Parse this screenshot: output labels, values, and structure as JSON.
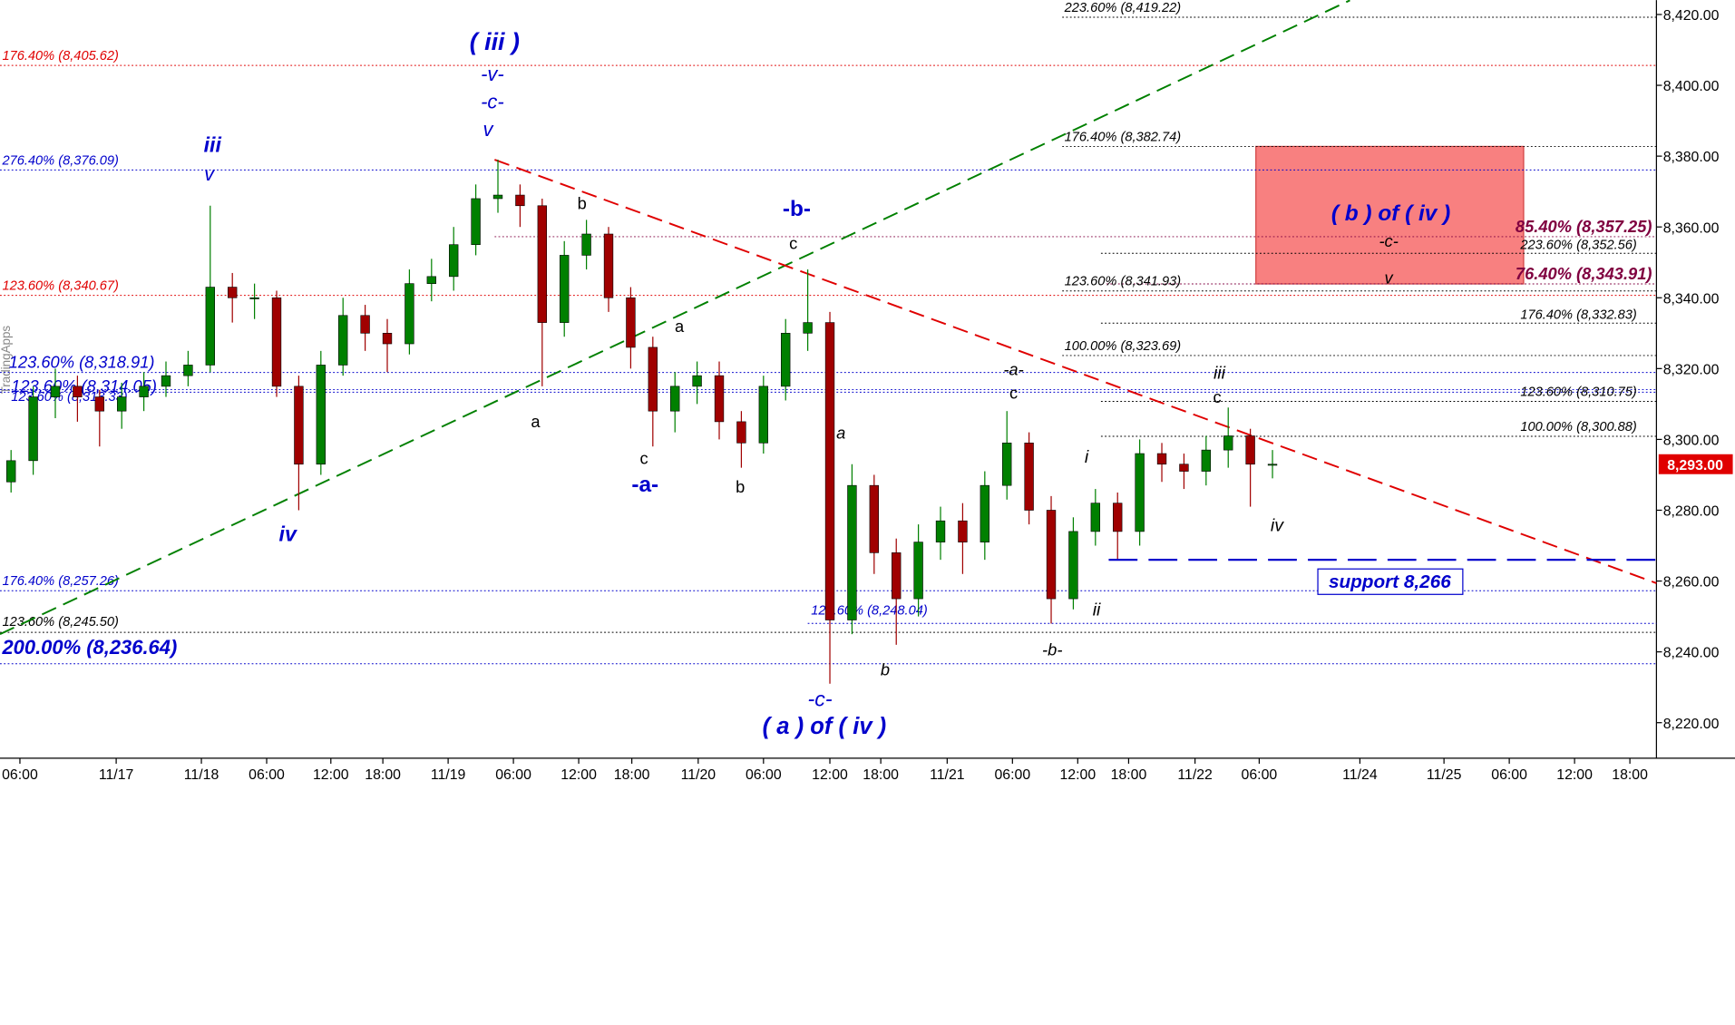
{
  "chart_data": {
    "type": "candlestick",
    "watermark": "TradingApps",
    "up_color": "#008000",
    "down_color": "#a00000",
    "xlim": [
      0,
      74.85
    ],
    "ylim": [
      8210.6,
      8424.06
    ],
    "yticks": [
      {
        "value": 8220,
        "label": "8,220.00"
      },
      {
        "value": 8240,
        "label": "8,240.00"
      },
      {
        "value": 8260,
        "label": "8,260.00"
      },
      {
        "value": 8280,
        "label": "8,280.00"
      },
      {
        "value": 8300,
        "label": "8,300.00"
      },
      {
        "value": 8320,
        "label": "8,320.00"
      },
      {
        "value": 8340,
        "label": "8,340.00"
      },
      {
        "value": 8360,
        "label": "8,360.00"
      },
      {
        "value": 8380,
        "label": "8,380.00"
      },
      {
        "value": 8400,
        "label": "8,400.00"
      },
      {
        "value": 8420,
        "label": "8,420.00"
      }
    ],
    "xticks": [
      {
        "value": 0.9,
        "label": "06:00"
      },
      {
        "value": 5.25,
        "label": "11/17"
      },
      {
        "value": 9.1,
        "label": "11/18"
      },
      {
        "value": 12.05,
        "label": "06:00"
      },
      {
        "value": 14.95,
        "label": "12:00"
      },
      {
        "value": 17.3,
        "label": "18:00"
      },
      {
        "value": 20.25,
        "label": "11/19"
      },
      {
        "value": 23.2,
        "label": "06:00"
      },
      {
        "value": 26.15,
        "label": "12:00"
      },
      {
        "value": 28.55,
        "label": "18:00"
      },
      {
        "value": 31.55,
        "label": "11/20"
      },
      {
        "value": 34.5,
        "label": "06:00"
      },
      {
        "value": 37.5,
        "label": "12:00"
      },
      {
        "value": 39.8,
        "label": "18:00"
      },
      {
        "value": 42.8,
        "label": "11/21"
      },
      {
        "value": 45.75,
        "label": "06:00"
      },
      {
        "value": 48.7,
        "label": "12:00"
      },
      {
        "value": 51,
        "label": "18:00"
      },
      {
        "value": 54,
        "label": "11/22"
      },
      {
        "value": 56.9,
        "label": "06:00"
      },
      {
        "value": 61.45,
        "label": "11/24"
      },
      {
        "value": 65.25,
        "label": "11/25"
      },
      {
        "value": 68.2,
        "label": "06:00"
      },
      {
        "value": 71.15,
        "label": "12:00"
      },
      {
        "value": 73.65,
        "label": "18:00"
      }
    ],
    "x": [
      0.5,
      1.5,
      2.5,
      3.5,
      4.5,
      5.5,
      6.5,
      7.5,
      8.5,
      9.5,
      10.5,
      11.5,
      12.5,
      13.5,
      14.5,
      15.5,
      16.5,
      17.5,
      18.5,
      19.5,
      20.5,
      21.5,
      22.5,
      23.5,
      24.5,
      25.5,
      26.5,
      27.5,
      28.5,
      29.5,
      30.5,
      31.5,
      32.5,
      33.5,
      34.5,
      35.5,
      36.5,
      37.5,
      38.5,
      39.5,
      40.5,
      41.5,
      42.5,
      43.5,
      44.5,
      45.5,
      46.5,
      47.5,
      48.5,
      49.5,
      50.5,
      51.5,
      52.5,
      53.5,
      54.5,
      55.5,
      56.5,
      57.5
    ],
    "open": [
      8288,
      8294,
      8312,
      8315,
      8312,
      8308,
      8312,
      8315,
      8318,
      8321,
      8343,
      8340,
      8340,
      8315,
      8293,
      8321,
      8335,
      8330,
      8327,
      8344,
      8346,
      8355,
      8368,
      8369,
      8366,
      8333,
      8352,
      8358,
      8340,
      8326,
      8308,
      8315,
      8318,
      8305,
      8299,
      8315,
      8330,
      8333,
      8249,
      8287,
      8268,
      8255,
      8271,
      8277,
      8271,
      8287,
      8299,
      8280,
      8255,
      8274,
      8282,
      8274,
      8296,
      8293,
      8291,
      8297,
      8301,
      8293
    ],
    "high": [
      8297,
      8315,
      8320,
      8318,
      8314,
      8316,
      8319,
      8322,
      8325,
      8366,
      8347,
      8344,
      8342,
      8318,
      8325,
      8340,
      8338,
      8334,
      8348,
      8351,
      8360,
      8372,
      8379,
      8372,
      8368,
      8356,
      8362,
      8360,
      8343,
      8329,
      8319,
      8322,
      8322,
      8308,
      8318,
      8334,
      8348,
      8336,
      8293,
      8290,
      8272,
      8276,
      8281,
      8282,
      8291,
      8308,
      8302,
      8284,
      8278,
      8286,
      8285,
      8300,
      8299,
      8296,
      8301,
      8309,
      8303,
      8297
    ],
    "low": [
      8285,
      8290,
      8306,
      8305,
      8298,
      8303,
      8308,
      8312,
      8315,
      8319,
      8333,
      8334,
      8312,
      8280,
      8290,
      8318,
      8325,
      8319,
      8324,
      8339,
      8342,
      8352,
      8364,
      8360,
      8315,
      8329,
      8348,
      8336,
      8320,
      8298,
      8302,
      8310,
      8300,
      8292,
      8296,
      8311,
      8325,
      8231,
      8245,
      8262,
      8242,
      8250,
      8266,
      8262,
      8266,
      8283,
      8276,
      8248,
      8252,
      8270,
      8266,
      8270,
      8288,
      8286,
      8287,
      8292,
      8281,
      8289
    ],
    "close": [
      8294,
      8312,
      8315,
      8312,
      8308,
      8312,
      8315,
      8318,
      8321,
      8343,
      8340,
      8340,
      8315,
      8293,
      8321,
      8335,
      8330,
      8327,
      8344,
      8346,
      8355,
      8368,
      8369,
      8366,
      8333,
      8352,
      8358,
      8340,
      8326,
      8308,
      8315,
      8318,
      8305,
      8299,
      8315,
      8330,
      8333,
      8249,
      8287,
      8268,
      8255,
      8271,
      8277,
      8271,
      8287,
      8299,
      8280,
      8255,
      8274,
      8282,
      8274,
      8296,
      8293,
      8291,
      8297,
      8301,
      8293,
      8293
    ],
    "levels": [
      {
        "label": "223.60% (8,419.22)",
        "value": 8419.22,
        "color": "#000000"
      },
      {
        "label": "176.40% (8,405.62)",
        "value": 8405.62,
        "color": "#e00000"
      },
      {
        "label": "176.40% (8,382.74)",
        "value": 8382.74,
        "color": "#000000"
      },
      {
        "label": "276.40% (8,376.09)",
        "value": 8376.09,
        "color": "#0000cc"
      },
      {
        "label": "85.40% (8,357.25)",
        "value": 8357.25,
        "color": "#800040"
      },
      {
        "label": "223.60% (8,352.56)",
        "value": 8352.56,
        "color": "#000000"
      },
      {
        "label": "76.40% (8,343.91)",
        "value": 8343.91,
        "color": "#800040"
      },
      {
        "label": "123.60% (8,341.93)",
        "value": 8341.93,
        "color": "#000000"
      },
      {
        "label": "123.60% (8,340.67)",
        "value": 8340.67,
        "color": "#e00000"
      },
      {
        "label": "176.40% (8,332.83)",
        "value": 8332.83,
        "color": "#000000"
      },
      {
        "label": "100.00% (8,323.69)",
        "value": 8323.69,
        "color": "#000000"
      },
      {
        "label": "123.60% (8,318.91)",
        "value": 8318.91,
        "color": "#0000cc"
      },
      {
        "label": "123.60% (8,314.05)",
        "value": 8314.05,
        "color": "#0000cc"
      },
      {
        "label": "123.60% (8,313.33)",
        "value": 8313.33,
        "color": "#0000cc"
      },
      {
        "label": "123.60% (8,310.75)",
        "value": 8310.75,
        "color": "#000000"
      },
      {
        "label": "100.00% (8,300.88)",
        "value": 8300.88,
        "color": "#000000"
      },
      {
        "label": "176.40% (8,257.26)",
        "value": 8257.26,
        "color": "#0000cc"
      },
      {
        "label": "123.60% (8,248.04)",
        "value": 8248.04,
        "color": "#0000cc"
      },
      {
        "label": "123.60% (8,245.50)",
        "value": 8245.5,
        "color": "#000000"
      },
      {
        "label": "200.00% (8,236.64)",
        "value": 8236.64,
        "color": "#0000cc"
      }
    ],
    "zone": {
      "label": "( b ) of ( iv )",
      "range": [
        8343.91,
        8382.74
      ],
      "color": "#f88080"
    },
    "support": {
      "label": "support 8,266",
      "value": 8266,
      "color": "#0000cc"
    },
    "last_price": {
      "label": "8,293.00",
      "value": 8293,
      "color": "#e00000"
    },
    "trendlines": [
      {
        "points": [
          [
            0,
            8245
          ],
          [
            61,
            8424
          ]
        ],
        "color": "#008000"
      },
      {
        "points": [
          [
            22.35,
            8379
          ],
          [
            74.85,
            8259.4
          ]
        ],
        "color": "#e00000"
      }
    ],
    "wave_labels": [
      "( iii )",
      "-v-",
      "-c-",
      "v",
      "iii",
      "v",
      "iv",
      "-b-",
      "c",
      "b",
      "a",
      "a",
      "c",
      "-a-",
      "b",
      "a",
      "-c-",
      "( a ) of ( iv )",
      "b",
      "-a-",
      "c",
      "i",
      "ii",
      "-b-",
      "iii",
      "c",
      "iv",
      "-c-",
      "v"
    ]
  }
}
